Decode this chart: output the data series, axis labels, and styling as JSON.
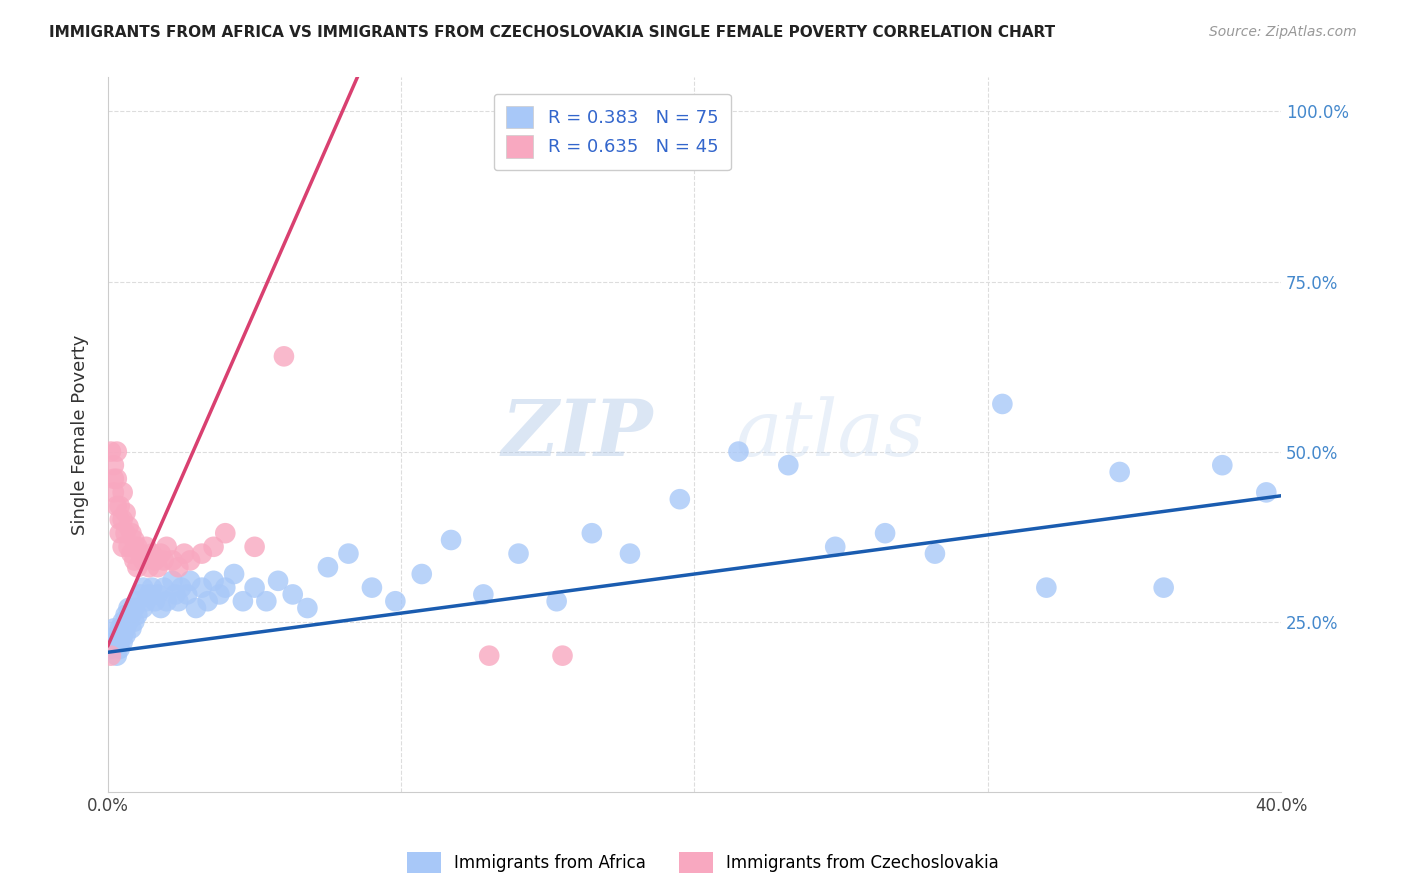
{
  "title": "IMMIGRANTS FROM AFRICA VS IMMIGRANTS FROM CZECHOSLOVAKIA SINGLE FEMALE POVERTY CORRELATION CHART",
  "source": "Source: ZipAtlas.com",
  "xlabel_africa": "Immigrants from Africa",
  "xlabel_czecho": "Immigrants from Czechoslovakia",
  "ylabel": "Single Female Poverty",
  "xlim": [
    0.0,
    0.4
  ],
  "ylim": [
    0.0,
    1.05
  ],
  "yticks": [
    0.0,
    0.25,
    0.5,
    0.75,
    1.0
  ],
  "ytick_labels": [
    "",
    "25.0%",
    "50.0%",
    "75.0%",
    "100.0%"
  ],
  "xticks": [
    0.0,
    0.1,
    0.2,
    0.3,
    0.4
  ],
  "xtick_labels": [
    "0.0%",
    "",
    "",
    "",
    "40.0%"
  ],
  "africa_R": 0.383,
  "africa_N": 75,
  "czecho_R": 0.635,
  "czecho_N": 45,
  "africa_color": "#a8c8f8",
  "czecho_color": "#f8a8c0",
  "africa_line_color": "#1a5cb0",
  "czecho_line_color": "#d94070",
  "background_color": "#ffffff",
  "grid_color": "#dddddd",
  "watermark_zip": "ZIP",
  "watermark_atlas": "atlas",
  "africa_x": [
    0.001,
    0.002,
    0.002,
    0.003,
    0.003,
    0.004,
    0.004,
    0.004,
    0.005,
    0.005,
    0.005,
    0.006,
    0.006,
    0.006,
    0.007,
    0.007,
    0.008,
    0.008,
    0.009,
    0.009,
    0.01,
    0.01,
    0.011,
    0.012,
    0.012,
    0.013,
    0.014,
    0.015,
    0.016,
    0.017,
    0.018,
    0.019,
    0.02,
    0.022,
    0.023,
    0.024,
    0.025,
    0.027,
    0.028,
    0.03,
    0.032,
    0.034,
    0.036,
    0.038,
    0.04,
    0.043,
    0.046,
    0.05,
    0.054,
    0.058,
    0.063,
    0.068,
    0.075,
    0.082,
    0.09,
    0.098,
    0.107,
    0.117,
    0.128,
    0.14,
    0.153,
    0.165,
    0.178,
    0.195,
    0.215,
    0.232,
    0.248,
    0.265,
    0.282,
    0.305,
    0.32,
    0.345,
    0.36,
    0.38,
    0.395
  ],
  "africa_y": [
    0.21,
    0.24,
    0.22,
    0.2,
    0.23,
    0.22,
    0.24,
    0.21,
    0.23,
    0.25,
    0.22,
    0.24,
    0.26,
    0.23,
    0.25,
    0.27,
    0.24,
    0.26,
    0.25,
    0.27,
    0.28,
    0.26,
    0.29,
    0.27,
    0.3,
    0.28,
    0.29,
    0.3,
    0.28,
    0.29,
    0.27,
    0.3,
    0.28,
    0.31,
    0.29,
    0.28,
    0.3,
    0.29,
    0.31,
    0.27,
    0.3,
    0.28,
    0.31,
    0.29,
    0.3,
    0.32,
    0.28,
    0.3,
    0.28,
    0.31,
    0.29,
    0.27,
    0.33,
    0.35,
    0.3,
    0.28,
    0.32,
    0.37,
    0.29,
    0.35,
    0.28,
    0.38,
    0.35,
    0.43,
    0.5,
    0.48,
    0.36,
    0.38,
    0.35,
    0.57,
    0.3,
    0.47,
    0.3,
    0.48,
    0.44
  ],
  "czecho_x": [
    0.001,
    0.001,
    0.002,
    0.002,
    0.002,
    0.003,
    0.003,
    0.003,
    0.004,
    0.004,
    0.004,
    0.005,
    0.005,
    0.005,
    0.006,
    0.006,
    0.007,
    0.007,
    0.008,
    0.008,
    0.009,
    0.009,
    0.01,
    0.01,
    0.011,
    0.012,
    0.013,
    0.014,
    0.015,
    0.016,
    0.017,
    0.018,
    0.019,
    0.02,
    0.022,
    0.024,
    0.026,
    0.028,
    0.032,
    0.036,
    0.04,
    0.05,
    0.06,
    0.13,
    0.155
  ],
  "czecho_y": [
    0.2,
    0.5,
    0.46,
    0.48,
    0.44,
    0.42,
    0.46,
    0.5,
    0.4,
    0.42,
    0.38,
    0.36,
    0.4,
    0.44,
    0.38,
    0.41,
    0.36,
    0.39,
    0.35,
    0.38,
    0.34,
    0.37,
    0.33,
    0.36,
    0.35,
    0.34,
    0.36,
    0.33,
    0.35,
    0.34,
    0.33,
    0.35,
    0.34,
    0.36,
    0.34,
    0.33,
    0.35,
    0.34,
    0.35,
    0.36,
    0.38,
    0.36,
    0.64,
    0.2,
    0.2
  ],
  "africa_line_x0": 0.0,
  "africa_line_x1": 0.4,
  "africa_line_y0": 0.205,
  "africa_line_y1": 0.435,
  "czecho_line_x0": 0.0,
  "czecho_line_x1": 0.085,
  "czecho_line_y0": 0.215,
  "czecho_line_y1": 1.05
}
